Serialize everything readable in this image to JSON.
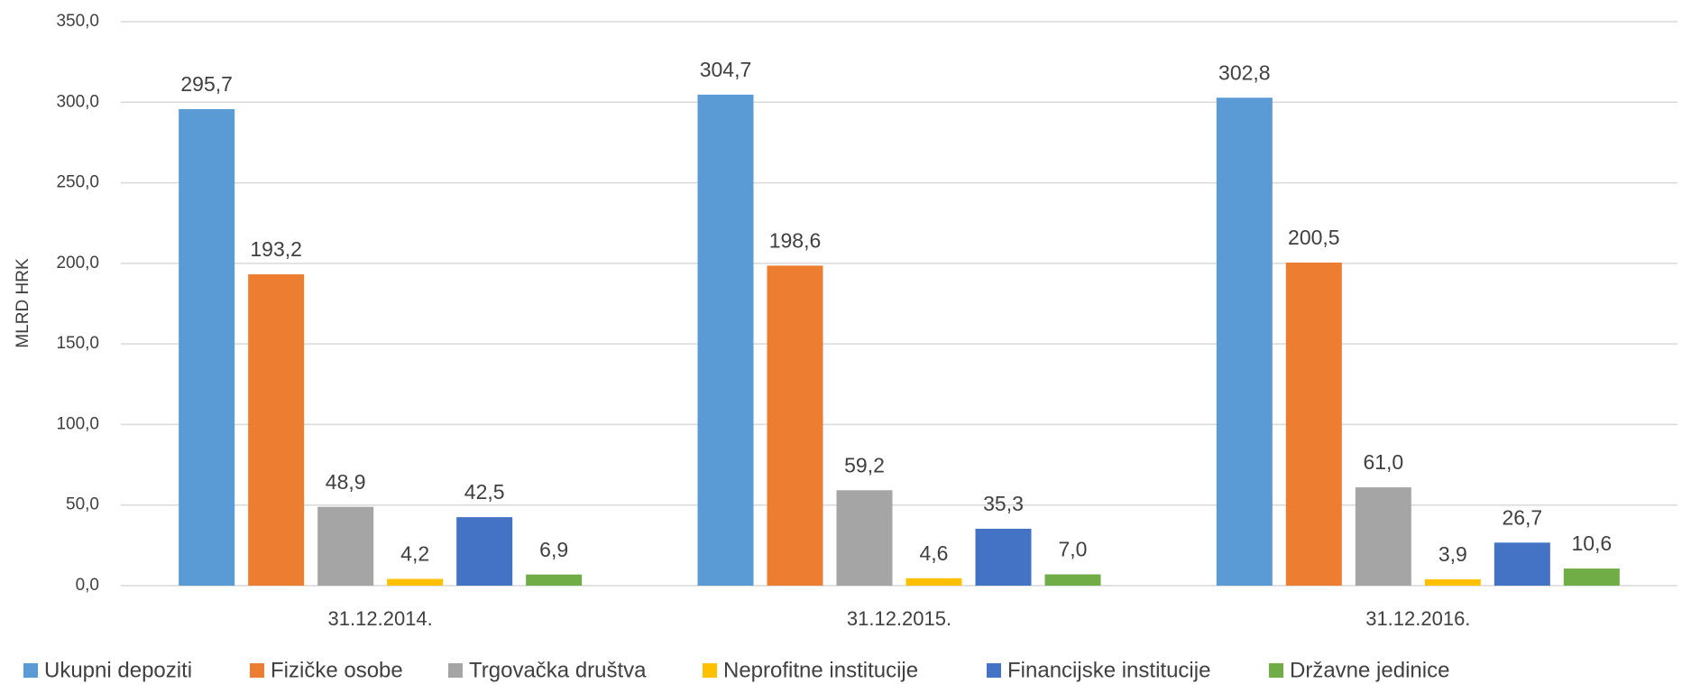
{
  "chart_data": {
    "type": "bar",
    "y_axis_label": "MLRD HRK",
    "categories": [
      "31.12.2014.",
      "31.12.2015.",
      "31.12.2016."
    ],
    "series": [
      {
        "name": "Ukupni depoziti",
        "color": "#5b9bd5",
        "values": [
          295.7,
          304.7,
          302.8
        ],
        "value_labels": [
          "295,7",
          "304,7",
          "302,8"
        ]
      },
      {
        "name": "Fizičke osobe",
        "color": "#ed7d31",
        "values": [
          193.2,
          198.6,
          200.5
        ],
        "value_labels": [
          "193,2",
          "198,6",
          "200,5"
        ]
      },
      {
        "name": "Trgovačka društva",
        "color": "#a5a5a5",
        "values": [
          48.9,
          59.2,
          61.0
        ],
        "value_labels": [
          "48,9",
          "59,2",
          "61,0"
        ]
      },
      {
        "name": "Neprofitne institucije",
        "color": "#ffc000",
        "values": [
          4.2,
          4.6,
          3.9
        ],
        "value_labels": [
          "4,2",
          "4,6",
          "3,9"
        ]
      },
      {
        "name": "Financijske institucije",
        "color": "#4472c4",
        "values": [
          42.5,
          35.3,
          26.7
        ],
        "value_labels": [
          "42,5",
          "35,3",
          "26,7"
        ]
      },
      {
        "name": "Državne jedinice",
        "color": "#70ad47",
        "values": [
          6.9,
          7.0,
          10.6
        ],
        "value_labels": [
          "6,9",
          "7,0",
          "10,6"
        ]
      }
    ],
    "ylim": [
      0,
      350
    ],
    "yticks": [
      {
        "value": 0,
        "label": "0,0"
      },
      {
        "value": 50,
        "label": "50,0"
      },
      {
        "value": 100,
        "label": "100,0"
      },
      {
        "value": 150,
        "label": "150,0"
      },
      {
        "value": 200,
        "label": "200,0"
      },
      {
        "value": 250,
        "label": "250,0"
      },
      {
        "value": 300,
        "label": "300,0"
      },
      {
        "value": 350,
        "label": "350,0"
      }
    ],
    "grid": true,
    "legend": "bottom"
  }
}
